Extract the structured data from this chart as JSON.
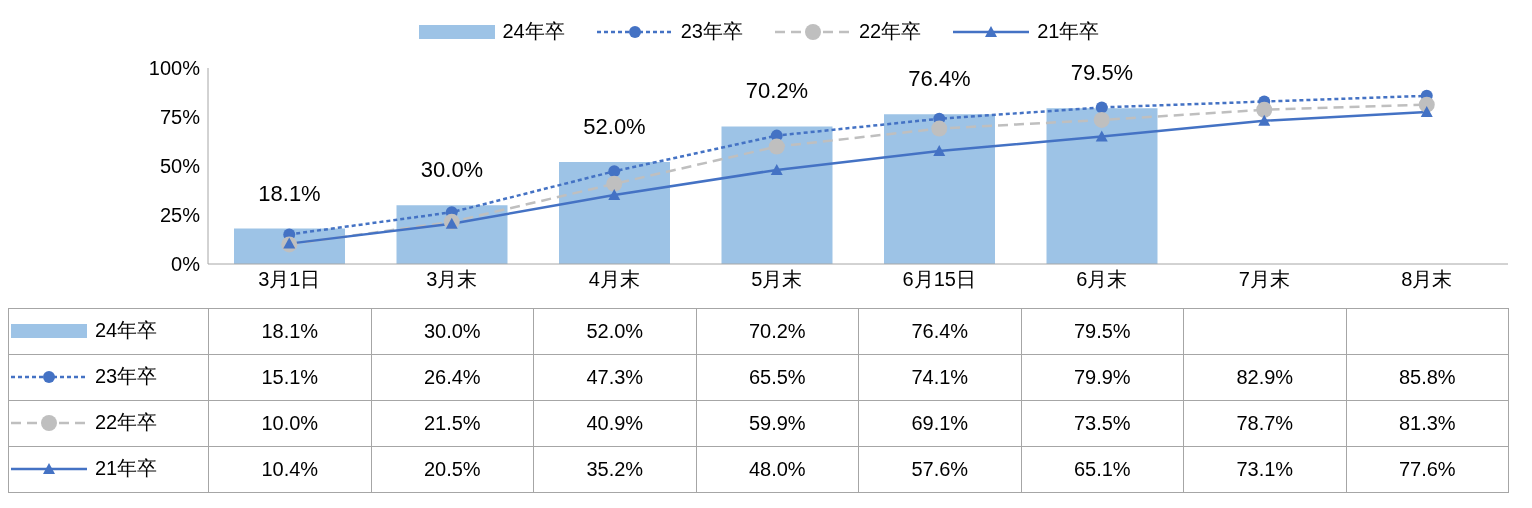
{
  "chart_data": {
    "type": "bar",
    "categories": [
      "3月1日",
      "3月末",
      "4月末",
      "5月末",
      "6月15日",
      "6月末",
      "7月末",
      "8月末"
    ],
    "series": [
      {
        "name": "24年卒",
        "color": "#9dc3e6",
        "values": [
          18.1,
          30.0,
          52.0,
          70.2,
          76.4,
          79.5,
          null,
          null
        ],
        "value_labels": [
          "18.1%",
          "30.0%",
          "52.0%",
          "70.2%",
          "76.4%",
          "79.5%",
          null,
          null
        ]
      },
      {
        "name": "23年卒",
        "type": "line",
        "color": "#4472c4",
        "marker": "circle",
        "line_style": "dotted",
        "values": [
          15.1,
          26.4,
          47.3,
          65.5,
          74.1,
          79.9,
          82.9,
          85.8
        ],
        "value_labels": [
          "15.1%",
          "26.4%",
          "47.3%",
          "65.5%",
          "74.1%",
          "79.9%",
          "82.9%",
          "85.8%"
        ]
      },
      {
        "name": "22年卒",
        "type": "line",
        "color": "#bfbfbf",
        "marker": "circle",
        "line_style": "dashed",
        "values": [
          10.0,
          21.5,
          40.9,
          59.9,
          69.1,
          73.5,
          78.7,
          81.3
        ],
        "value_labels": [
          "10.0%",
          "21.5%",
          "40.9%",
          "59.9%",
          "69.1%",
          "73.5%",
          "78.7%",
          "81.3%"
        ]
      },
      {
        "name": "21年卒",
        "type": "line",
        "color": "#4472c4",
        "marker": "triangle",
        "line_style": "solid",
        "values": [
          10.4,
          20.5,
          35.2,
          48.0,
          57.6,
          65.1,
          73.1,
          77.6
        ],
        "value_labels": [
          "10.4%",
          "20.5%",
          "35.2%",
          "48.0%",
          "57.6%",
          "65.1%",
          "73.1%",
          "77.6%"
        ]
      }
    ],
    "ylim": [
      0,
      100
    ],
    "yticks": [
      {
        "value": 0,
        "label": "0%"
      },
      {
        "value": 25,
        "label": "25%"
      },
      {
        "value": 50,
        "label": "50%"
      },
      {
        "value": 75,
        "label": "75%"
      },
      {
        "value": 100,
        "label": "100%"
      }
    ],
    "legend": "top"
  }
}
